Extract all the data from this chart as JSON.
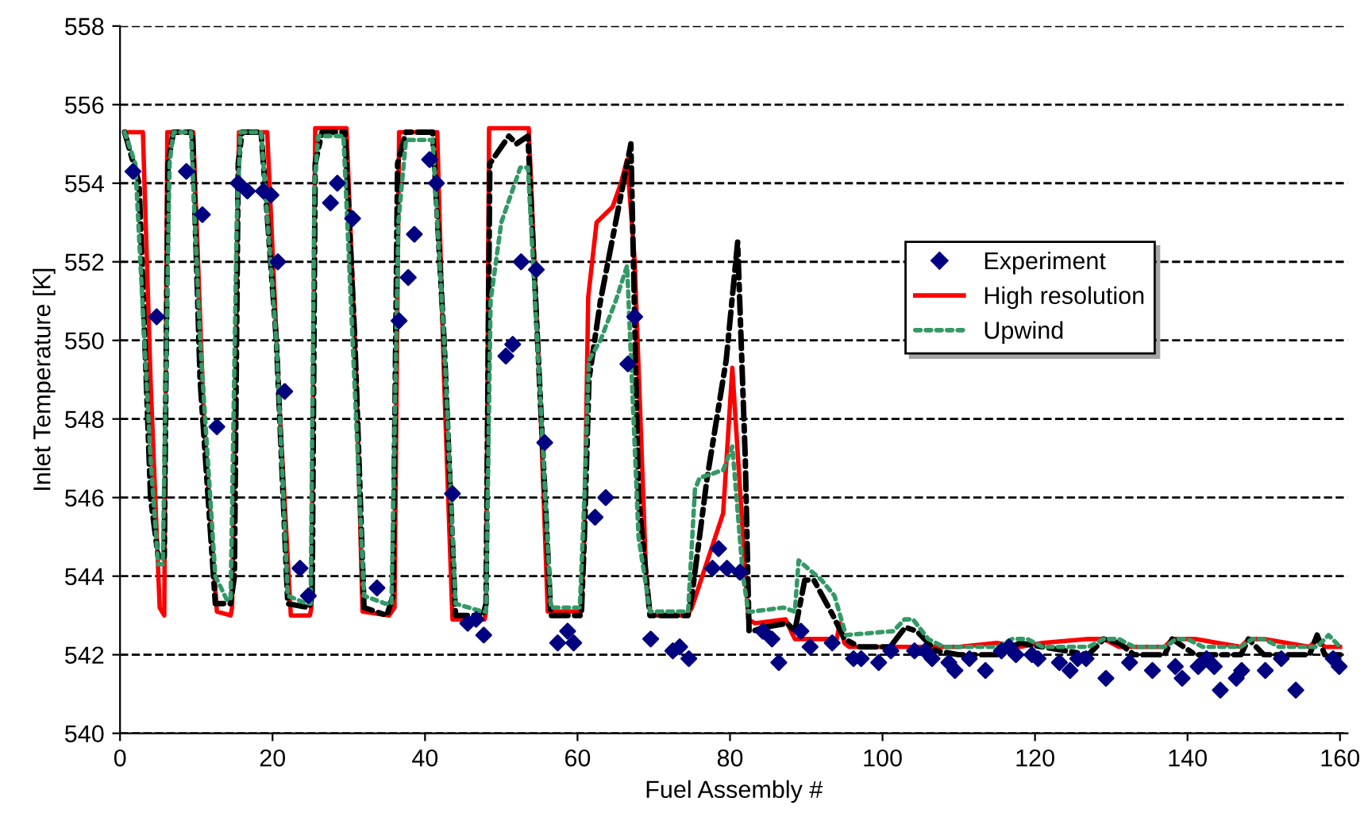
{
  "chart_data": {
    "type": "line",
    "xlabel": "Fuel Assembly #",
    "ylabel": "Inlet Temperature [K]",
    "xlim": [
      0,
      161
    ],
    "xticks": [
      0,
      20,
      40,
      60,
      80,
      100,
      120,
      140,
      160
    ],
    "ylim": [
      540,
      558
    ],
    "yticks": [
      540,
      542,
      544,
      546,
      548,
      550,
      552,
      554,
      556,
      558
    ],
    "grid": "y",
    "legend": "right",
    "series": [
      {
        "name": "Experiment",
        "type": "scatter",
        "color": "#000080",
        "marker": "diamond",
        "x": [
          1.7,
          4.8,
          8.7,
          10.8,
          12.7,
          15.5,
          16.7,
          18.8,
          19.8,
          20.7,
          21.6,
          23.6,
          24.7,
          27.6,
          28.5,
          30.5,
          33.7,
          36.6,
          37.8,
          38.6,
          40.6,
          41.5,
          43.6,
          45.6,
          46.7,
          47.7,
          50.6,
          51.5,
          52.6,
          54.6,
          55.7,
          57.4,
          58.7,
          59.5,
          62.3,
          63.7,
          66.6,
          67.5,
          69.6,
          72.5,
          73.4,
          74.6,
          77.7,
          78.5,
          79.6,
          81.3,
          84.3,
          85.5,
          86.4,
          89.3,
          90.5,
          93.4,
          96.2,
          97.2,
          99.5,
          101.1,
          104.2,
          105.6,
          106.5,
          108.7,
          109.5,
          111.4,
          113.5,
          115.6,
          116.6,
          117.5,
          119.6,
          120.4,
          123.2,
          124.6,
          125.6,
          126.7,
          129.3,
          132.4,
          135.4,
          138.4,
          139.3,
          141.4,
          142.5,
          143.5,
          144.3,
          146.4,
          147.1,
          150.2,
          152.3,
          154.2,
          159.1,
          159.9
        ],
        "values": [
          554.3,
          550.6,
          554.3,
          553.2,
          547.8,
          554.0,
          553.8,
          553.8,
          553.7,
          552.0,
          548.7,
          544.2,
          543.5,
          553.5,
          554.0,
          553.1,
          543.7,
          550.5,
          551.6,
          552.7,
          554.6,
          554.0,
          546.1,
          542.8,
          542.9,
          542.5,
          549.6,
          549.9,
          552.0,
          551.8,
          547.4,
          542.3,
          542.6,
          542.3,
          545.5,
          546.0,
          549.4,
          550.6,
          542.4,
          542.1,
          542.2,
          541.9,
          544.2,
          544.7,
          544.2,
          544.1,
          542.6,
          542.4,
          541.8,
          542.6,
          542.2,
          542.3,
          541.9,
          541.9,
          541.8,
          542.1,
          542.1,
          542.1,
          541.9,
          541.8,
          541.6,
          541.9,
          541.6,
          542.1,
          542.2,
          542.0,
          542.0,
          541.9,
          541.8,
          541.6,
          541.9,
          541.9,
          541.4,
          541.8,
          541.6,
          541.7,
          541.4,
          541.7,
          541.9,
          541.7,
          541.1,
          541.4,
          541.6,
          541.6,
          541.9,
          541.1,
          541.9,
          541.7
        ]
      },
      {
        "name": "High resolution",
        "color": "#ff0000",
        "line_style": "solid",
        "x": [
          0.6,
          3,
          4,
          5.2,
          5.8,
          6.2,
          9.6,
          11,
          12.7,
          14.5,
          14.7,
          15.6,
          19.3,
          21,
          22.4,
          24.9,
          25.1,
          25.6,
          29.7,
          31,
          31.8,
          35.3,
          36,
          36.6,
          41.6,
          42.5,
          43.6,
          47.8,
          48,
          48.4,
          53.6,
          55,
          56.1,
          60.5,
          60.9,
          61.4,
          62.5,
          64.6,
          65.7,
          66.5,
          67.5,
          69,
          69.6,
          74.4,
          75,
          79.1,
          80.3,
          81.7,
          82.4,
          83.3,
          87.3,
          88,
          88.5,
          94,
          94.4,
          95,
          95.6,
          108,
          110,
          115,
          118,
          121,
          127,
          129,
          131,
          137,
          138,
          141,
          147,
          148,
          150,
          156,
          157,
          158,
          160
        ],
        "values": [
          555.3,
          555.3,
          549,
          543.2,
          543.0,
          555.3,
          555.3,
          548,
          543.1,
          543.0,
          543.2,
          555.3,
          555.3,
          548,
          543.0,
          543.0,
          543.2,
          555.4,
          555.4,
          549,
          543.1,
          543.0,
          543.2,
          555.3,
          555.3,
          549,
          542.9,
          542.9,
          543.1,
          555.4,
          555.4,
          549,
          543.1,
          543.1,
          545,
          551.1,
          553.0,
          553.4,
          554.0,
          554.6,
          552,
          544,
          543.0,
          543.0,
          543.2,
          545.6,
          549.3,
          545,
          542.9,
          542.8,
          542.9,
          542.6,
          542.4,
          542.4,
          542.8,
          542.3,
          542.2,
          542.2,
          542.2,
          542.3,
          542.2,
          542.3,
          542.4,
          542.4,
          542.2,
          542.2,
          542.4,
          542.4,
          542.2,
          542.4,
          542.4,
          542.2,
          542.4,
          542.2,
          542.2
        ]
      },
      {
        "name": "Upwind",
        "color": "#339966",
        "line_style": "dotted",
        "x": [
          0.6,
          2,
          4,
          5,
          5.6,
          6.5,
          7,
          9.3,
          10.5,
          12.5,
          14,
          14.5,
          15.3,
          15.8,
          18.5,
          20.5,
          22,
          24.5,
          25,
          25.5,
          26,
          29.3,
          30.5,
          32,
          34.8,
          35.6,
          36.5,
          37.5,
          41,
          42.5,
          44,
          47.5,
          48,
          48.6,
          50,
          52.5,
          53.5,
          55,
          56.5,
          60.3,
          60.9,
          61.5,
          63,
          65,
          66.5,
          68,
          69.5,
          74.5,
          75.4,
          76,
          79.1,
          80.3,
          81.7,
          82.4,
          83,
          87,
          88.5,
          89,
          92,
          93.7,
          95.2,
          101.4,
          102.9,
          104,
          106,
          108,
          115,
          117,
          119,
          121,
          127,
          129,
          131,
          133,
          137,
          138.5,
          140,
          142,
          147,
          148.5,
          150,
          152,
          157,
          158.5,
          160
        ],
        "values": [
          555.3,
          554.5,
          547,
          544.3,
          544.3,
          554.5,
          555.3,
          555.3,
          550,
          544,
          543.4,
          543.4,
          553,
          555.3,
          555.3,
          550,
          543.5,
          543.3,
          543.3,
          554,
          555.2,
          555.2,
          550,
          543.5,
          543.3,
          543.3,
          553,
          555.1,
          555.1,
          550,
          543.3,
          543.1,
          543.1,
          551,
          553,
          554.4,
          554.4,
          549,
          543.2,
          543.2,
          546,
          549.5,
          550,
          551,
          551.9,
          545,
          543.1,
          543.1,
          546.2,
          546.5,
          546.7,
          547.3,
          544,
          543.1,
          543.1,
          543.2,
          543.1,
          544.4,
          543.9,
          543.5,
          542.5,
          542.6,
          542.9,
          542.9,
          542.4,
          542.2,
          542.2,
          542.4,
          542.4,
          542.2,
          542.2,
          542.4,
          542.4,
          542.2,
          542.2,
          542.4,
          542.4,
          542.2,
          542.2,
          542.4,
          542.4,
          542.2,
          542.2,
          542.5,
          542.2
        ]
      },
      {
        "color": "#000000",
        "line_style": "dashdot",
        "x": [
          0.6,
          2.5,
          4,
          5,
          5.8,
          6.3,
          7,
          9.5,
          10.5,
          12.5,
          14.5,
          15,
          15.5,
          16,
          18.5,
          20.5,
          22,
          24.8,
          25.2,
          25.6,
          26.5,
          29.5,
          30.8,
          32,
          35,
          35.8,
          36.4,
          37.5,
          41,
          42.5,
          44,
          47.6,
          48,
          48.5,
          51,
          52,
          53.5,
          55,
          56.5,
          60.5,
          60.9,
          61.5,
          63,
          65.5,
          67,
          68,
          69.5,
          74.5,
          75,
          77,
          79.5,
          81,
          82,
          82.5,
          83,
          84.5,
          87.5,
          88.5,
          89.8,
          91,
          93.5,
          95,
          97,
          101,
          103,
          104.5,
          107,
          110,
          115,
          118,
          121,
          127,
          129,
          131,
          133,
          137,
          138,
          141,
          143,
          147,
          148,
          150,
          152,
          156,
          157,
          158,
          160
        ],
        "values": [
          555.3,
          554,
          546,
          544.5,
          544.5,
          554.5,
          555.3,
          555.3,
          549,
          543.3,
          543.3,
          544,
          554.5,
          555.3,
          555.3,
          550,
          543.3,
          543.2,
          543.5,
          554.5,
          555.3,
          555.3,
          550,
          543.2,
          543.0,
          543.5,
          554.5,
          555.3,
          555.3,
          550,
          543.0,
          543.0,
          543.3,
          554.5,
          555.2,
          555.0,
          555.2,
          549,
          543.0,
          543.0,
          545,
          549,
          551,
          553.5,
          555.0,
          546,
          543.0,
          543.0,
          543.5,
          546.5,
          549.5,
          552.5,
          547,
          542.6,
          542.6,
          542.7,
          542.8,
          542.6,
          543.9,
          543.9,
          543.0,
          542.4,
          542.2,
          542.2,
          542.7,
          542.6,
          542.1,
          542.0,
          542.0,
          542.3,
          542.2,
          542.0,
          542.4,
          542.3,
          542.0,
          542.0,
          542.4,
          542.0,
          542.0,
          542.0,
          542.4,
          542.0,
          542.0,
          542.0,
          542.5,
          542.0,
          542.0
        ]
      }
    ]
  }
}
